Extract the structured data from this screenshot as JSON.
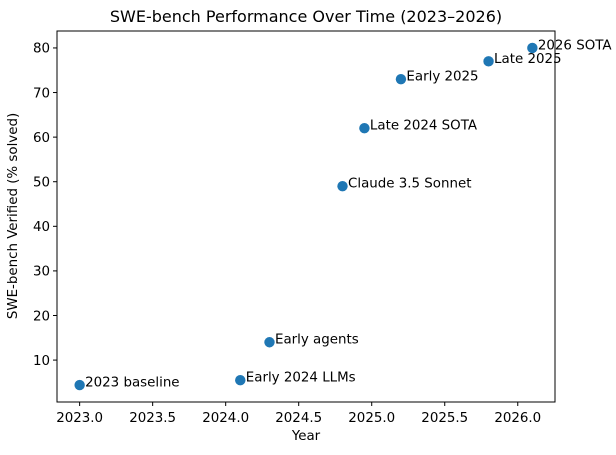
{
  "chart_data": {
    "type": "scatter",
    "title": "SWE-bench Performance Over Time (2023–2026)",
    "xlabel": "Year",
    "ylabel": "SWE-bench Verified (% solved)",
    "xlim": [
      2022.845,
      2026.255
    ],
    "ylim": [
      0.6,
      83.8
    ],
    "xticks": [
      2023.0,
      2023.5,
      2024.0,
      2024.5,
      2025.0,
      2025.5,
      2026.0
    ],
    "xtick_labels": [
      "2023.0",
      "2023.5",
      "2024.0",
      "2024.5",
      "2025.0",
      "2025.5",
      "2026.0"
    ],
    "yticks": [
      10,
      20,
      30,
      40,
      50,
      60,
      70,
      80
    ],
    "ytick_labels": [
      "10",
      "20",
      "30",
      "40",
      "50",
      "60",
      "70",
      "80"
    ],
    "grid": false,
    "legend": null,
    "colors": {
      "marker": "#1f77b4",
      "axis": "#000000",
      "background": "#ffffff"
    },
    "points": [
      {
        "x": 2023.0,
        "y": 4.4,
        "label": "2023 baseline"
      },
      {
        "x": 2024.1,
        "y": 5.5,
        "label": "Early 2024 LLMs"
      },
      {
        "x": 2024.3,
        "y": 14,
        "label": "Early agents"
      },
      {
        "x": 2024.8,
        "y": 49,
        "label": "Claude 3.5 Sonnet"
      },
      {
        "x": 2024.95,
        "y": 62,
        "label": "Late 2024 SOTA"
      },
      {
        "x": 2025.2,
        "y": 73,
        "label": "Early 2025"
      },
      {
        "x": 2025.8,
        "y": 77,
        "label": "Late 2025"
      },
      {
        "x": 2026.1,
        "y": 80,
        "label": "2026 SOTA"
      }
    ]
  }
}
